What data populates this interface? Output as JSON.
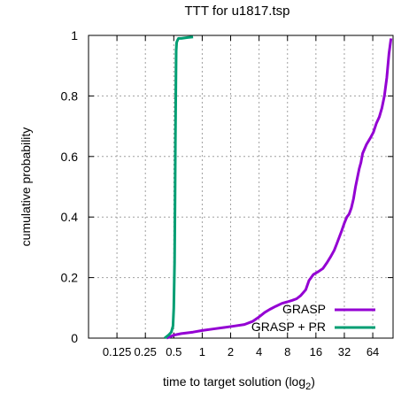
{
  "chart_data": {
    "type": "line",
    "title": "TTT for u1817.tsp",
    "xlabel": "time to target solution (log",
    "xlabel_subscript": "2",
    "xlabel_close": ")",
    "ylabel": "cumulative probability",
    "x_scale": "log2",
    "xlim": [
      0.0625,
      105
    ],
    "ylim": [
      0,
      1
    ],
    "x_ticks": [
      0.125,
      0.25,
      0.5,
      1,
      2,
      4,
      8,
      16,
      32,
      64
    ],
    "x_tick_labels": [
      "0.125",
      "0.25",
      "0.5",
      "1",
      "2",
      "4",
      "8",
      "16",
      "32",
      "64"
    ],
    "y_ticks": [
      0,
      0.2,
      0.4,
      0.6,
      0.8,
      1
    ],
    "y_tick_labels": [
      "0",
      "0.2",
      "0.4",
      "0.6",
      "0.8",
      "1"
    ],
    "grid": true,
    "legend_position": "bottom-right",
    "series": [
      {
        "name": "GRASP",
        "color": "#9400d3",
        "x": [
          0.42,
          0.46,
          0.5,
          0.6,
          0.8,
          1.0,
          1.3,
          1.7,
          2.2,
          2.8,
          3.4,
          4.0,
          4.6,
          5.2,
          6.0,
          7.0,
          8.0,
          9.0,
          10.0,
          11.0,
          12.5,
          13.5,
          15.0,
          17.0,
          19.0,
          21.0,
          23.0,
          25.0,
          26.5,
          28.0,
          30.0,
          32.0,
          34.0,
          36.0,
          38.0,
          40.0,
          42.0,
          44.0,
          46.0,
          48.0,
          50.0,
          55.0,
          60.0,
          65.0,
          70.0,
          75.0,
          80.0,
          85.0,
          90.0,
          95.0,
          100.0
        ],
        "y": [
          0.0,
          0.005,
          0.01,
          0.015,
          0.02,
          0.025,
          0.03,
          0.035,
          0.04,
          0.045,
          0.055,
          0.07,
          0.085,
          0.095,
          0.105,
          0.115,
          0.12,
          0.125,
          0.13,
          0.14,
          0.16,
          0.19,
          0.21,
          0.22,
          0.23,
          0.25,
          0.27,
          0.29,
          0.31,
          0.33,
          0.355,
          0.38,
          0.4,
          0.41,
          0.43,
          0.46,
          0.5,
          0.53,
          0.56,
          0.58,
          0.61,
          0.64,
          0.66,
          0.68,
          0.71,
          0.73,
          0.76,
          0.8,
          0.86,
          0.94,
          0.99
        ]
      },
      {
        "name": "GRASP + PR",
        "color": "#009e73",
        "x": [
          0.4,
          0.44,
          0.47,
          0.49,
          0.5,
          0.51,
          0.515,
          0.52,
          0.525,
          0.53,
          0.535,
          0.54,
          0.55,
          0.56,
          0.6,
          0.7,
          0.8
        ],
        "y": [
          0.0,
          0.01,
          0.02,
          0.04,
          0.1,
          0.25,
          0.45,
          0.65,
          0.82,
          0.95,
          0.975,
          0.98,
          0.985,
          0.99,
          0.99,
          0.993,
          0.995
        ]
      }
    ]
  }
}
